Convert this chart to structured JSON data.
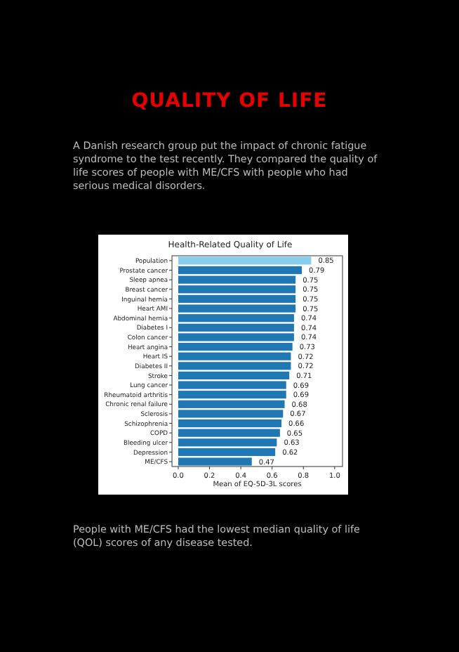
{
  "chart_data": {
    "type": "bar",
    "orientation": "horizontal",
    "title": "QUALITY OF LIFE",
    "subtitle": "A Danish research group put the impact of chronic fatigue syndrome to the test recently. They compared the quality of life scores of people with ME/CFS with people who had serious medical disorders.",
    "annotations": [
      "Health-Related Quality of Life",
      "People with ME/CFS had the lowest median quality of life (QOL) scores of any disease tested."
    ],
    "xlabel": "Mean of EQ-5D-3L scores",
    "categories": [
      "Population",
      "Prostate cancer",
      "Sleep apnea",
      "Breast cancer",
      "Inguinal hernia",
      "Heart AMI",
      "Abdominal hernia",
      "Diabetes I",
      "Colon cancer",
      "Heart angina",
      "Heart IS",
      "Diabetes II",
      "Stroke",
      "Lung cancer",
      "Rheumatoid arthritis",
      "Chronic renal failure",
      "Sclerosis",
      "Schizophrenia",
      "COPD",
      "Bleeding ulcer",
      "Depression",
      "ME/CFS"
    ],
    "values": [
      0.85,
      0.79,
      0.75,
      0.75,
      0.75,
      0.75,
      0.74,
      0.74,
      0.74,
      0.73,
      0.72,
      0.72,
      0.71,
      0.69,
      0.69,
      0.68,
      0.67,
      0.66,
      0.65,
      0.63,
      0.62,
      0.47
    ],
    "colors": [
      "#87ceeb",
      "#1f77b4",
      "#1f77b4",
      "#1f77b4",
      "#1f77b4",
      "#1f77b4",
      "#1f77b4",
      "#1f77b4",
      "#1f77b4",
      "#1f77b4",
      "#1f77b4",
      "#1f77b4",
      "#1f77b4",
      "#1f77b4",
      "#1f77b4",
      "#1f77b4",
      "#1f77b4",
      "#1f77b4",
      "#1f77b4",
      "#1f77b4",
      "#1f77b4",
      "#1f77b4"
    ],
    "data_labels": true,
    "xlim": [
      -0.04,
      1.05
    ],
    "xticks": [
      {
        "value": 0,
        "label": "0.0"
      },
      {
        "value": 0.2,
        "label": "0.2"
      },
      {
        "value": 0.4,
        "label": "0.4"
      },
      {
        "value": 0.6,
        "label": "0.6"
      },
      {
        "value": 0.8,
        "label": "0.8"
      },
      {
        "value": 1,
        "label": "1.0"
      }
    ]
  }
}
